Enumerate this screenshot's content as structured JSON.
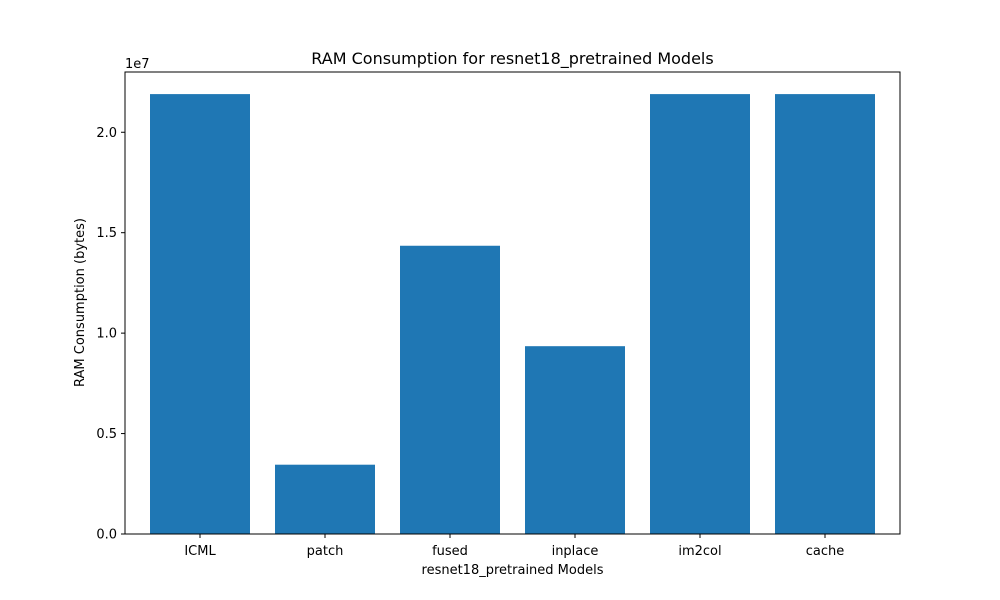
{
  "chart_data": {
    "type": "bar",
    "title": "RAM Consumption for resnet18_pretrained Models",
    "xlabel": "resnet18_pretrained Models",
    "ylabel": "RAM Consumption (bytes)",
    "y_offset_label": "1e7",
    "categories": [
      "ICML",
      "patch",
      "fused",
      "inplace",
      "im2col",
      "cache"
    ],
    "values": [
      21900000,
      3450000,
      14350000,
      9350000,
      21900000,
      21900000
    ],
    "ylim": [
      0,
      23000000
    ],
    "yticks": [
      0,
      5000000,
      10000000,
      15000000,
      20000000
    ],
    "ytick_labels": [
      "0.0",
      "0.5",
      "1.0",
      "1.5",
      "2.0"
    ],
    "grid": false,
    "legend": "none",
    "bar_color": "#1f77b4"
  }
}
